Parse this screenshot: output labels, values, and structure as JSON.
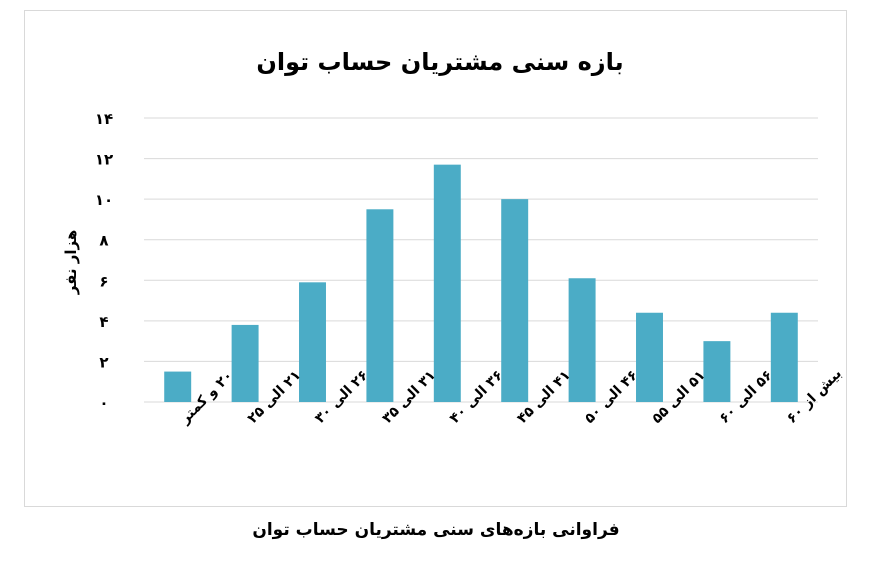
{
  "chart_data": {
    "type": "bar",
    "title": "بازه سنی مشتریان حساب توان",
    "xlabel": "",
    "ylabel": "هزار نفر",
    "categories": [
      "۲۰ و کمتر",
      "۲۱ الی ۲۵",
      "۲۶ الی ۳۰",
      "۳۱ الی ۳۵",
      "۳۶ الی ۴۰",
      "۴۱ الی ۴۵",
      "۴۶ الی ۵۰",
      "۵۱ الی ۵۵",
      "۵۶ الی ۶۰",
      "بیش از ۶۰"
    ],
    "values": [
      1.5,
      3.8,
      5.9,
      9.5,
      11.7,
      10.0,
      6.1,
      4.4,
      3.0,
      4.4
    ],
    "ylim": [
      0,
      14
    ],
    "yticks": [
      0,
      2,
      4,
      6,
      8,
      10,
      12,
      14
    ],
    "ytick_labels": [
      "۰",
      "۲",
      "۴",
      "۶",
      "۸",
      "۱۰",
      "۱۲",
      "۱۴"
    ],
    "grid": true,
    "legend": "none",
    "bar_color": "#4bacc6",
    "grid_color": "#d9d9d9"
  },
  "caption": "فراوانی بازه‌های سنی مشتریان حساب توان"
}
